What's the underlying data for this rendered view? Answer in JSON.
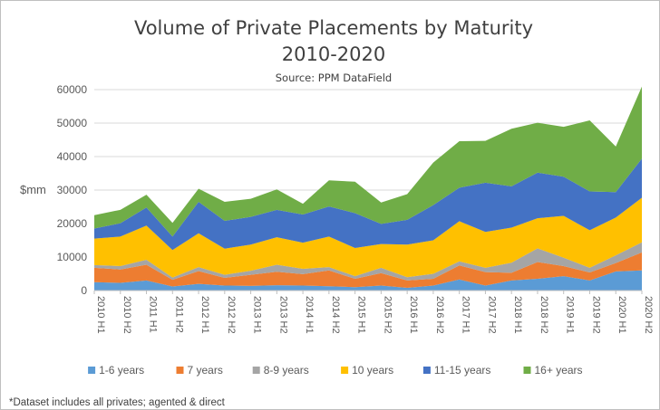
{
  "chart_data": {
    "type": "area",
    "stacked": true,
    "title": "Volume of Private Placements by Maturity",
    "subtitle": "2010-2020",
    "source": "Source: PPM DataField",
    "ylabel": "$mm",
    "ylim": [
      0,
      60000
    ],
    "yticks": [
      "0",
      "10000",
      "20000",
      "30000",
      "40000",
      "50000",
      "60000"
    ],
    "ytick_values": [
      0,
      10000,
      20000,
      30000,
      40000,
      50000,
      60000
    ],
    "grid": true,
    "legend_position": "bottom",
    "categories": [
      "2010 H1",
      "2010 H2",
      "2011 H1",
      "2011 H2",
      "2012 H1",
      "2012 H2",
      "2013 H1",
      "2013 H2",
      "2014 H1",
      "2014 H2",
      "2015 H1",
      "2015 H2",
      "2016 H1",
      "2016 H2",
      "2017 H1",
      "2017 H2",
      "2018 H1",
      "2018 H2",
      "2019 H1",
      "2019 H2",
      "2020 H1",
      "2020 H2"
    ],
    "series": [
      {
        "name": "1-6 years",
        "color": "#5b9bd5",
        "values": [
          2500,
          2300,
          3000,
          1200,
          2000,
          1500,
          1400,
          1600,
          1500,
          1300,
          1000,
          1500,
          800,
          1500,
          3300,
          1500,
          3000,
          3500,
          4300,
          3000,
          5700,
          6000
        ]
      },
      {
        "name": "7 years",
        "color": "#ed7d31",
        "values": [
          4300,
          4000,
          4700,
          2000,
          3800,
          2300,
          3300,
          4000,
          3400,
          4700,
          2500,
          3700,
          2200,
          2000,
          4200,
          4000,
          2300,
          5000,
          3000,
          2400,
          2500,
          5400
        ]
      },
      {
        "name": "8-9 years",
        "color": "#a5a5a5",
        "values": [
          800,
          1000,
          1500,
          700,
          1200,
          900,
          1200,
          2100,
          1600,
          1000,
          800,
          1600,
          1000,
          1500,
          1200,
          1300,
          3000,
          4100,
          2500,
          1400,
          2300,
          3000
        ]
      },
      {
        "name": "10 years",
        "color": "#ffc000",
        "values": [
          7900,
          8800,
          10200,
          8200,
          10100,
          7800,
          7800,
          8200,
          7800,
          9100,
          8400,
          7100,
          9700,
          10000,
          12000,
          10700,
          10500,
          9000,
          12500,
          11200,
          11300,
          13300
        ]
      },
      {
        "name": "11-15 years",
        "color": "#4472c4",
        "values": [
          3000,
          4000,
          5400,
          4000,
          9400,
          8300,
          8300,
          8200,
          8400,
          9000,
          10400,
          6000,
          7400,
          10500,
          10000,
          14700,
          12300,
          13600,
          11700,
          11600,
          7600,
          11700
        ]
      },
      {
        "name": "16+ years",
        "color": "#70ad47",
        "values": [
          4000,
          4000,
          3800,
          4100,
          3900,
          5700,
          5400,
          6100,
          3200,
          7800,
          9400,
          6400,
          7700,
          12700,
          13900,
          12500,
          17200,
          14900,
          14900,
          21200,
          13600,
          21500
        ]
      }
    ]
  },
  "footnote": "*Dataset includes all privates; agented & direct"
}
